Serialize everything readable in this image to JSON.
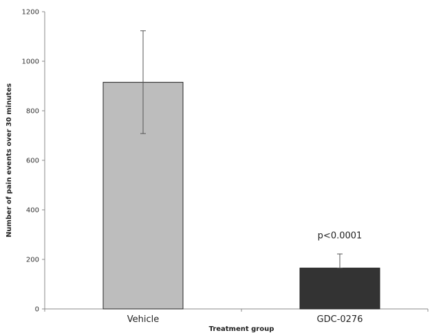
{
  "chart_data": {
    "type": "bar",
    "title": "",
    "xlabel": "Treatment group",
    "ylabel": "Number of pain events over 30 minutes",
    "categories": [
      "Vehicle",
      "GDC-0276"
    ],
    "values": [
      915,
      165
    ],
    "error_upper": [
      1123,
      222
    ],
    "error_lower": [
      708,
      165
    ],
    "bar_colors": [
      "#bdbdbd",
      "#333333"
    ],
    "ylim": [
      0,
      1200
    ],
    "yticks": [
      0,
      200,
      400,
      600,
      800,
      1000,
      1200
    ],
    "grid": false,
    "legend": "none",
    "annotations": [
      {
        "text": "p<0.0001",
        "category_index": 1,
        "y": 285
      }
    ]
  }
}
